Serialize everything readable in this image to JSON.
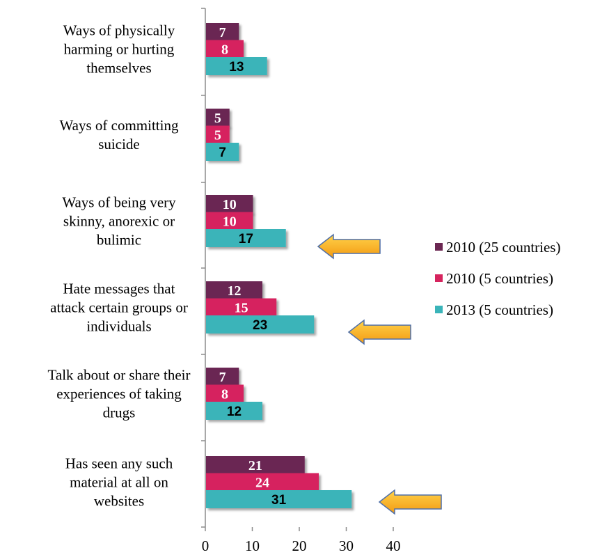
{
  "chart_data": {
    "type": "bar",
    "orientation": "horizontal",
    "categories": [
      [
        "Ways of physically",
        "harming or hurting",
        "themselves"
      ],
      [
        "Ways of committing",
        "suicide"
      ],
      [
        "Ways of being very",
        "skinny, anorexic or",
        "bulimic"
      ],
      [
        "Hate messages that",
        "attack certain groups or",
        "individuals"
      ],
      [
        "Talk about or share their",
        "experiences of taking",
        "drugs"
      ],
      [
        "Has seen any such",
        "material at all on",
        "websites"
      ]
    ],
    "series": [
      {
        "name": "2010 (25 countries)",
        "color": "#6B2752",
        "label_color": "#ffffff",
        "values": [
          7,
          5,
          10,
          12,
          7,
          21
        ]
      },
      {
        "name": "2010 (5 countries)",
        "color": "#D6245E",
        "label_color": "#ffffff",
        "values": [
          8,
          5,
          10,
          15,
          8,
          24
        ]
      },
      {
        "name": "2013 (5 countries)",
        "color": "#3AB4B9",
        "label_color": "#000000",
        "values": [
          13,
          7,
          17,
          23,
          12,
          31
        ]
      }
    ],
    "xlim": [
      0,
      40
    ],
    "xticks": [
      0,
      10,
      20,
      30,
      40
    ],
    "xlabel": "",
    "ylabel": "",
    "title": "",
    "grid": false,
    "legend_position": "right",
    "arrow_color": "#F7A817",
    "highlighted_categories": [
      2,
      3,
      5
    ]
  }
}
